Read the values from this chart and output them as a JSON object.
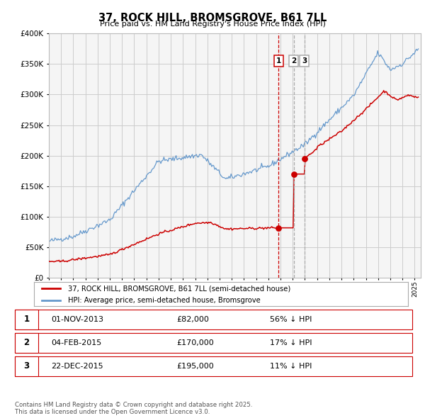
{
  "title": "37, ROCK HILL, BROMSGROVE, B61 7LL",
  "subtitle": "Price paid vs. HM Land Registry's House Price Index (HPI)",
  "red_label": "37, ROCK HILL, BROMSGROVE, B61 7LL (semi-detached house)",
  "blue_label": "HPI: Average price, semi-detached house, Bromsgrove",
  "footnote": "Contains HM Land Registry data © Crown copyright and database right 2025.\nThis data is licensed under the Open Government Licence v3.0.",
  "transactions": [
    {
      "num": 1,
      "date": "01-NOV-2013",
      "price": 82000,
      "pct": "56% ↓ HPI"
    },
    {
      "num": 2,
      "date": "04-FEB-2015",
      "price": 170000,
      "pct": "17% ↓ HPI"
    },
    {
      "num": 3,
      "date": "22-DEC-2015",
      "price": 195000,
      "pct": "11% ↓ HPI"
    }
  ],
  "t1": 2013.833,
  "t2": 2015.083,
  "t3": 2015.958,
  "p1": 82000,
  "p2": 170000,
  "p3": 195000,
  "ylim": [
    0,
    400000
  ],
  "xlim_start": 1995.0,
  "xlim_end": 2025.5,
  "red_color": "#cc0000",
  "blue_color": "#6699cc",
  "grid_color": "#cccccc",
  "bg_color": "#ffffff",
  "plot_bg": "#f5f5f5",
  "vline1_color": "#cc0000",
  "vline23_color": "#aaaaaa"
}
